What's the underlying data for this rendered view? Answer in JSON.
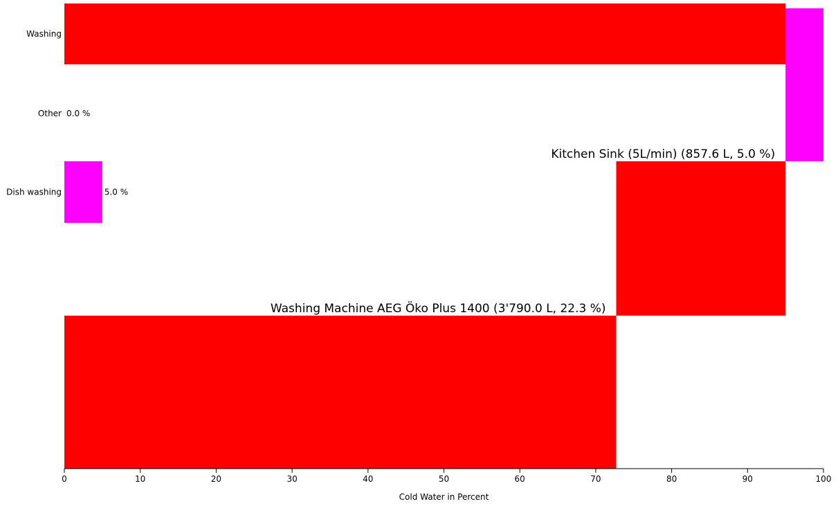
{
  "chart_data": {
    "type": "bar",
    "orientation": "horizontal",
    "xlabel": "Cold Water in Percent",
    "xlim": [
      0,
      100
    ],
    "xticks": [
      "0",
      "10",
      "20",
      "30",
      "40",
      "50",
      "60",
      "70",
      "80",
      "90",
      "100"
    ],
    "grid": false,
    "categories": [
      {
        "name": "Washing",
        "value_label": "",
        "segments": [
          {
            "label": "",
            "start": 0,
            "end": 95,
            "color": "#ff0000"
          }
        ]
      },
      {
        "name": "Other",
        "value_label": "0.0 %",
        "segments": []
      },
      {
        "name": "Dish washing",
        "value_label": "5.0 %",
        "segments": [
          {
            "label": "",
            "start": 0,
            "end": 5,
            "color": "#ff00ff"
          }
        ]
      }
    ],
    "cascade": [
      {
        "label": "",
        "start": 95,
        "end": 100,
        "color": "#ff00ff"
      },
      {
        "label": "Kitchen Sink (5L/min) (857.6 L, 5.0 %)",
        "start": 72.7,
        "end": 95,
        "color": "#ff0000"
      },
      {
        "label": "Washing Machine AEG Öko Plus 1400 (3'790.0 L, 22.3 %)",
        "start": 0,
        "end": 72.7,
        "color": "#ff0000"
      }
    ]
  }
}
